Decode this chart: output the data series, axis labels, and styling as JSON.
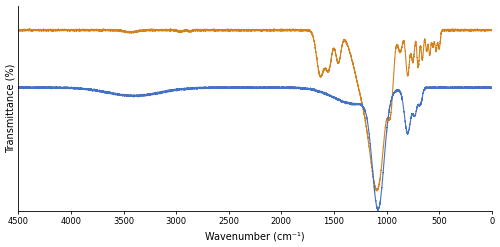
{
  "xlabel": "Wavenumber (cm⁻¹)",
  "ylabel": "Transmittance (%)",
  "xlim": [
    4500,
    0
  ],
  "xticks": [
    4500,
    4000,
    3500,
    3000,
    2500,
    2000,
    1500,
    1000,
    500,
    0
  ],
  "xtick_labels": [
    "4500",
    "4000",
    "3500",
    "3000",
    "2500",
    "2000",
    "1500",
    "1000",
    "500",
    "0"
  ],
  "orange_color": "#d4821e",
  "blue_color": "#4472c4",
  "background_color": "#ffffff"
}
